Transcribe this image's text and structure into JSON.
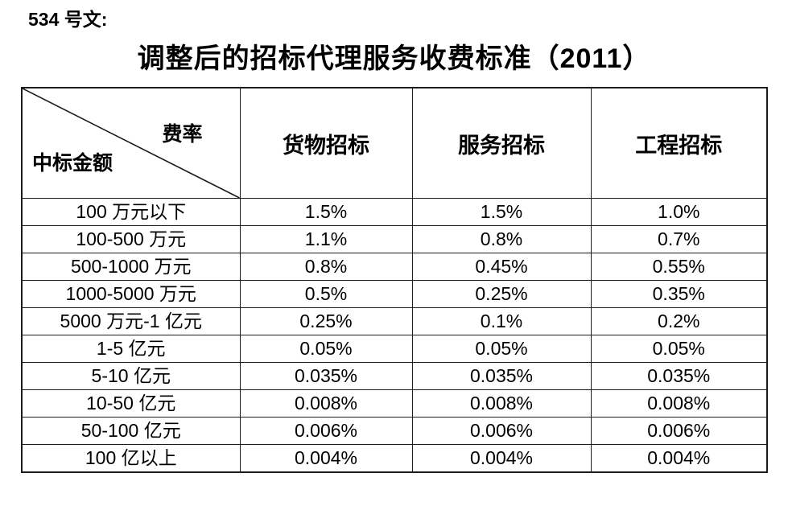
{
  "page": {
    "doc_label": "534 号文:",
    "title": "调整后的招标代理服务收费标准（2011）"
  },
  "table": {
    "corner": {
      "top_right": "费率",
      "bottom_left": "中标金额"
    },
    "columns": [
      "货物招标",
      "服务招标",
      "工程招标"
    ],
    "rows": [
      {
        "amount": "100 万元以下",
        "values": [
          "1.5%",
          "1.5%",
          "1.0%"
        ]
      },
      {
        "amount": "100-500 万元",
        "values": [
          "1.1%",
          "0.8%",
          "0.7%"
        ]
      },
      {
        "amount": "500-1000 万元",
        "values": [
          "0.8%",
          "0.45%",
          "0.55%"
        ]
      },
      {
        "amount": "1000-5000 万元",
        "values": [
          "0.5%",
          "0.25%",
          "0.35%"
        ]
      },
      {
        "amount": "5000 万元-1 亿元",
        "values": [
          "0.25%",
          "0.1%",
          "0.2%"
        ]
      },
      {
        "amount": "1-5 亿元",
        "values": [
          "0.05%",
          "0.05%",
          "0.05%"
        ]
      },
      {
        "amount": "5-10 亿元",
        "values": [
          "0.035%",
          "0.035%",
          "0.035%"
        ]
      },
      {
        "amount": "10-50 亿元",
        "values": [
          "0.008%",
          "0.008%",
          "0.008%"
        ]
      },
      {
        "amount": "50-100 亿元",
        "values": [
          "0.006%",
          "0.006%",
          "0.006%"
        ]
      },
      {
        "amount": "100 亿以上",
        "values": [
          "0.004%",
          "0.004%",
          "0.004%"
        ]
      }
    ]
  },
  "colors": {
    "text": "#000000",
    "border": "#1c1c1c",
    "background": "#ffffff"
  }
}
